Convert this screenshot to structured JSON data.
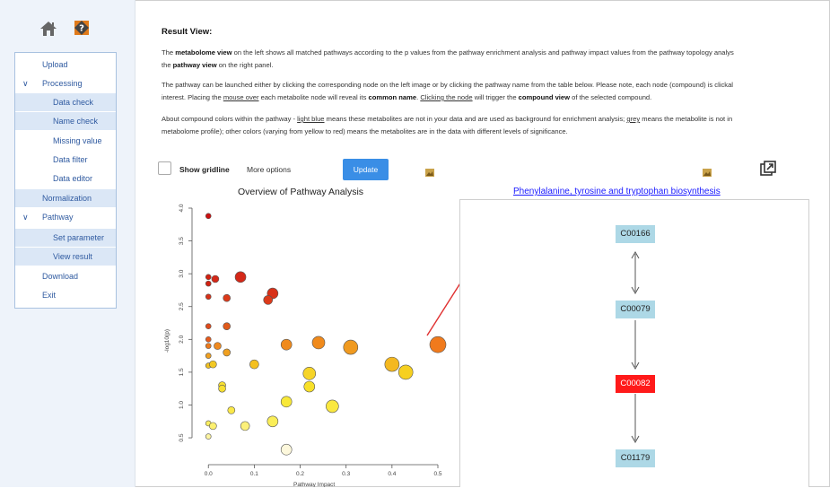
{
  "sidebar": {
    "icons": [
      "home-icon",
      "help-icon"
    ],
    "items": [
      {
        "label": "Upload",
        "level": 1
      },
      {
        "label": "Processing",
        "level": 1,
        "expanded": true
      },
      {
        "label": "Data check",
        "level": 2,
        "highlight": true
      },
      {
        "label": "Name check",
        "level": 2,
        "highlight": true
      },
      {
        "label": "Missing value",
        "level": 2
      },
      {
        "label": "Data filter",
        "level": 2
      },
      {
        "label": "Data editor",
        "level": 2
      },
      {
        "label": "Normalization",
        "level": 1,
        "highlight": true
      },
      {
        "label": "Pathway",
        "level": 1,
        "expanded": true
      },
      {
        "label": "Set parameter",
        "level": 2,
        "highlight": true
      },
      {
        "label": "View result",
        "level": 2,
        "highlight": true
      },
      {
        "label": "Download",
        "level": 1
      },
      {
        "label": "Exit",
        "level": 1
      }
    ]
  },
  "result": {
    "title": "Result View:",
    "p1a": "The ",
    "p1b": "metabolome view",
    "p1c": " on the left shows all matched pathways according to the p values from the pathway enrichment analysis and pathway impact values from the pathway topology analys",
    "p1d": "the ",
    "p1e": "pathway view",
    "p1f": " on the right panel.",
    "p2a": "The pathway can be launched either by clicking the corresponding node on the left image or by clicking the pathway name from the table below. Please note, each node (compound) is clickal",
    "p2b": "interest. Placing the ",
    "p2c": "mouse over",
    "p2d": " each metabolite node will reveal its ",
    "p2e": "common name",
    "p2f": ". ",
    "p2g": "Clicking the node",
    "p2h": " will trigger the ",
    "p2i": "compound view",
    "p2j": " of the selected compound.",
    "p3a": "About compound colors within the pathway - ",
    "p3b": "light blue",
    "p3c": " means these metabolites are not in your data and are used as background for enrichment analysis; ",
    "p3d": "grey",
    "p3e": " means the metabolite is not in",
    "p3f": "metabolome profile); other colors (varying from yellow to red) means the metabolites are in the data with different levels of significance."
  },
  "toolbar": {
    "show_gridline": "Show gridline",
    "more_options": "More options",
    "update": "Update"
  },
  "chart_data": {
    "type": "scatter",
    "title": "Overview of Pathway Analysis",
    "xlabel": "Pathway Impact",
    "ylabel": "-log10(p)",
    "xlim": [
      -0.02,
      0.5
    ],
    "ylim": [
      0.2,
      4.0
    ],
    "xticks": [
      "0.0",
      "0.1",
      "0.2",
      "0.3",
      "0.4",
      "0.5"
    ],
    "yticks": [
      "0.5",
      "1.0",
      "1.5",
      "2.0",
      "2.5",
      "3.0",
      "3.5",
      "4.0"
    ],
    "points": [
      {
        "x": 0.0,
        "y": 3.88,
        "r": 3,
        "color": "#cc1010"
      },
      {
        "x": 0.0,
        "y": 2.95,
        "r": 3,
        "color": "#d22010"
      },
      {
        "x": 0.0,
        "y": 2.85,
        "r": 3,
        "color": "#d22010"
      },
      {
        "x": 0.0,
        "y": 2.65,
        "r": 3,
        "color": "#d83018"
      },
      {
        "x": 0.015,
        "y": 2.92,
        "r": 4,
        "color": "#d42818"
      },
      {
        "x": 0.07,
        "y": 2.95,
        "r": 6,
        "color": "#d42818"
      },
      {
        "x": 0.14,
        "y": 2.7,
        "r": 6,
        "color": "#d83018"
      },
      {
        "x": 0.13,
        "y": 2.6,
        "r": 5,
        "color": "#dc3a1a"
      },
      {
        "x": 0.04,
        "y": 2.63,
        "r": 4,
        "color": "#dc3a1a"
      },
      {
        "x": 0.0,
        "y": 2.2,
        "r": 3,
        "color": "#e04a1a"
      },
      {
        "x": 0.04,
        "y": 2.2,
        "r": 4,
        "color": "#e05a1a"
      },
      {
        "x": 0.0,
        "y": 2.0,
        "r": 3,
        "color": "#e65a1c"
      },
      {
        "x": 0.0,
        "y": 1.9,
        "r": 3,
        "color": "#ec7a1c"
      },
      {
        "x": 0.02,
        "y": 1.9,
        "r": 4,
        "color": "#ef8a20"
      },
      {
        "x": 0.04,
        "y": 1.8,
        "r": 4,
        "color": "#f0a020"
      },
      {
        "x": 0.0,
        "y": 1.75,
        "r": 3,
        "color": "#f0a020"
      },
      {
        "x": 0.17,
        "y": 1.92,
        "r": 6,
        "color": "#f08a1c"
      },
      {
        "x": 0.24,
        "y": 1.95,
        "r": 7,
        "color": "#f08a1c"
      },
      {
        "x": 0.31,
        "y": 1.88,
        "r": 8,
        "color": "#f09a20"
      },
      {
        "x": 0.5,
        "y": 1.92,
        "r": 9,
        "color": "#f07a1c"
      },
      {
        "x": 0.0,
        "y": 1.6,
        "r": 3,
        "color": "#f0c020"
      },
      {
        "x": 0.01,
        "y": 1.62,
        "r": 4,
        "color": "#f2c824"
      },
      {
        "x": 0.1,
        "y": 1.62,
        "r": 5,
        "color": "#f4c020"
      },
      {
        "x": 0.4,
        "y": 1.62,
        "r": 8,
        "color": "#f4b820"
      },
      {
        "x": 0.43,
        "y": 1.5,
        "r": 8,
        "color": "#f6d020"
      },
      {
        "x": 0.22,
        "y": 1.48,
        "r": 7,
        "color": "#f6d428"
      },
      {
        "x": 0.22,
        "y": 1.28,
        "r": 6,
        "color": "#f8e028"
      },
      {
        "x": 0.03,
        "y": 1.3,
        "r": 4,
        "color": "#f8e030"
      },
      {
        "x": 0.03,
        "y": 1.25,
        "r": 4,
        "color": "#f8e030"
      },
      {
        "x": 0.17,
        "y": 1.05,
        "r": 6,
        "color": "#f8e838"
      },
      {
        "x": 0.27,
        "y": 0.98,
        "r": 7,
        "color": "#fae840"
      },
      {
        "x": 0.05,
        "y": 0.92,
        "r": 4,
        "color": "#fae848"
      },
      {
        "x": 0.14,
        "y": 0.75,
        "r": 6,
        "color": "#faee58"
      },
      {
        "x": 0.0,
        "y": 0.72,
        "r": 3,
        "color": "#faee60"
      },
      {
        "x": 0.01,
        "y": 0.68,
        "r": 4,
        "color": "#fcf070"
      },
      {
        "x": 0.08,
        "y": 0.68,
        "r": 5,
        "color": "#fcf07a"
      },
      {
        "x": 0.0,
        "y": 0.52,
        "r": 3,
        "color": "#fcf4a0"
      },
      {
        "x": 0.17,
        "y": 0.32,
        "r": 6,
        "color": "#fdf8dc"
      }
    ]
  },
  "pathway": {
    "title": "Phenylalanine, tyrosine and tryptophan biosynthesis",
    "nodes": [
      {
        "id": "C00166",
        "highlight": false
      },
      {
        "id": "C00079",
        "highlight": false
      },
      {
        "id": "C00082",
        "highlight": true
      },
      {
        "id": "C01179",
        "highlight": false
      }
    ]
  }
}
